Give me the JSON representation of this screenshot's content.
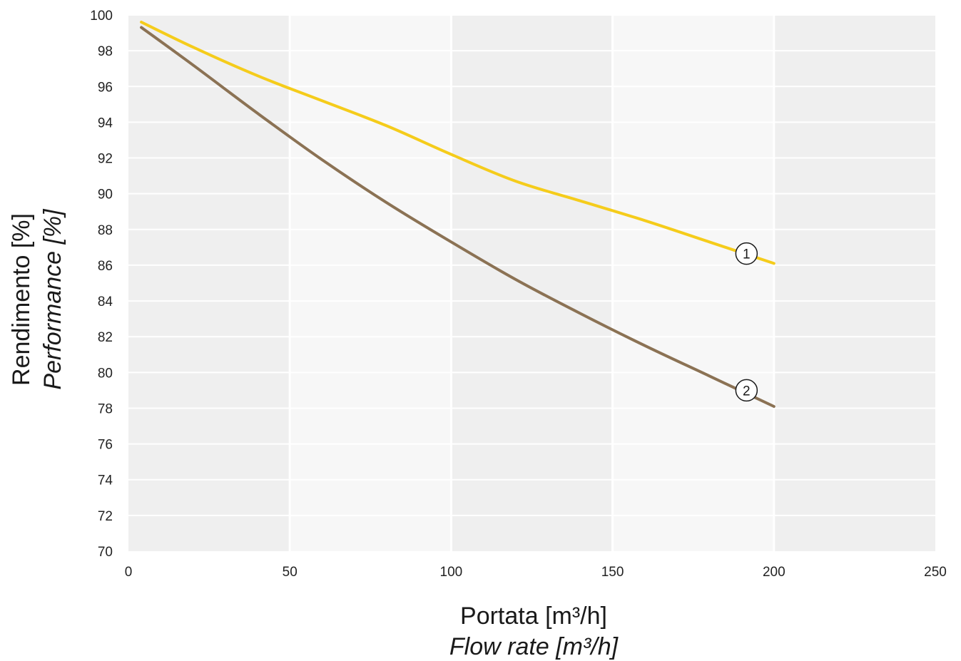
{
  "chart_data": {
    "type": "line",
    "xlabel": "Portata [m³/h]",
    "xlabel_en": "Flow rate [m³/h]",
    "ylabel": "Rendimento [%]",
    "ylabel_en": "Performance [%]",
    "xlim": [
      0,
      250
    ],
    "ylim": [
      70,
      100
    ],
    "x_ticks": [
      "0",
      "50",
      "100",
      "150",
      "200",
      "250"
    ],
    "y_ticks": [
      "70",
      "72",
      "74",
      "76",
      "78",
      "80",
      "82",
      "84",
      "86",
      "88",
      "90",
      "92",
      "94",
      "96",
      "98",
      "100"
    ],
    "grid": true,
    "series": [
      {
        "name": "1",
        "color": "#f5cc1b",
        "points": [
          [
            4,
            99.6
          ],
          [
            20,
            98.2
          ],
          [
            40,
            96.6
          ],
          [
            60,
            95.2
          ],
          [
            80,
            93.8
          ],
          [
            100,
            92.2
          ],
          [
            120,
            90.7
          ],
          [
            140,
            89.6
          ],
          [
            160,
            88.5
          ],
          [
            180,
            87.3
          ],
          [
            200,
            86.1
          ]
        ]
      },
      {
        "name": "2",
        "color": "#8b7254",
        "points": [
          [
            4,
            99.3
          ],
          [
            20,
            97.2
          ],
          [
            40,
            94.5
          ],
          [
            60,
            91.9
          ],
          [
            80,
            89.5
          ],
          [
            100,
            87.3
          ],
          [
            120,
            85.2
          ],
          [
            140,
            83.3
          ],
          [
            160,
            81.5
          ],
          [
            180,
            79.8
          ],
          [
            200,
            78.1
          ]
        ]
      }
    ],
    "markers": [
      {
        "label": "1",
        "x": 191.5,
        "y": 86.65
      },
      {
        "label": "2",
        "x": 191.5,
        "y": 79.0
      }
    ],
    "colors": {
      "band_dark": "#efefef",
      "band_light": "#f7f7f7",
      "grid": "#ffffff"
    }
  }
}
